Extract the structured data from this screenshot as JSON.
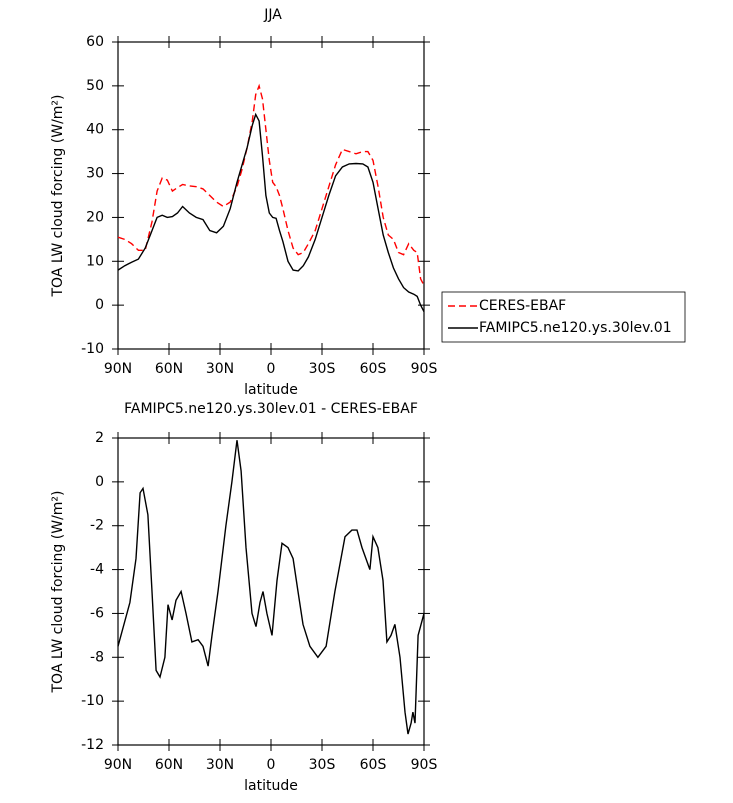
{
  "chart_data": [
    {
      "type": "line",
      "title": "JJA",
      "xlabel": "latitude",
      "ylabel": "TOA LW cloud forcing (W/m²)",
      "x": [
        90,
        86,
        82,
        78,
        74,
        70,
        67,
        64,
        61,
        58,
        55,
        52,
        48,
        44,
        40,
        36,
        32,
        28,
        24,
        20,
        17,
        14,
        11,
        9,
        7,
        5,
        3,
        1,
        -1,
        -3,
        -5,
        -7,
        -10,
        -13,
        -16,
        -19,
        -22,
        -26,
        -30,
        -34,
        -38,
        -42,
        -46,
        -50,
        -54,
        -57,
        -60,
        -63,
        -66,
        -69,
        -72,
        -75,
        -78,
        -81,
        -84,
        -86,
        -88,
        -90
      ],
      "series": [
        {
          "name": "CERES-EBAF",
          "color": "#ff0000",
          "linestyle": "dashed",
          "values": [
            15.5,
            15,
            14,
            12.5,
            12.5,
            19,
            26,
            29,
            28.5,
            26,
            26.8,
            27.5,
            27.2,
            27,
            26.5,
            25,
            23.5,
            22.5,
            23.5,
            27,
            31,
            36,
            42,
            48,
            50,
            47,
            40,
            33,
            28,
            27,
            25,
            22,
            17,
            13,
            11.5,
            12,
            14,
            17,
            22,
            27,
            32,
            35.5,
            35,
            34.5,
            35,
            35,
            33,
            27,
            20,
            16,
            15,
            12,
            11.5,
            14,
            12.5,
            12,
            6,
            4.5
          ]
        },
        {
          "name": "FAMIPC5.ne120.ys.30lev.01",
          "color": "#000000",
          "linestyle": "solid",
          "values": [
            8,
            9,
            9.8,
            10.5,
            13,
            17,
            20,
            20.5,
            20,
            20.2,
            21,
            22.5,
            21,
            20,
            19.5,
            17,
            16.5,
            18,
            22,
            28,
            32,
            36,
            41,
            43.5,
            42,
            34,
            25,
            21,
            20,
            19.8,
            17,
            14.5,
            10,
            8,
            7.8,
            9,
            11,
            15,
            20,
            25,
            29.5,
            31.5,
            32.2,
            32.3,
            32.2,
            31.5,
            28,
            22,
            16,
            12,
            8.5,
            6,
            4,
            3,
            2.5,
            2,
            0,
            -1.5
          ]
        }
      ],
      "xlim": [
        90,
        -90
      ],
      "ylim": [
        -10,
        60
      ],
      "xticks": [
        {
          "value": 90,
          "label": "90N"
        },
        {
          "value": 60,
          "label": "60N"
        },
        {
          "value": 30,
          "label": "30N"
        },
        0,
        {
          "value": -30,
          "label": "30S"
        },
        {
          "value": -60,
          "label": "60S"
        },
        {
          "value": -90,
          "label": "90S"
        }
      ],
      "yticks": [
        -10,
        0,
        10,
        20,
        30,
        40,
        50,
        60
      ],
      "legend": "right"
    },
    {
      "type": "line",
      "title": "FAMIPC5.ne120.ys.30lev.01 - CERES-EBAF",
      "xlabel": "latitude",
      "ylabel": "TOA LW cloud forcing (W/m²)",
      "x": [
        90,
        83,
        79.4,
        77,
        75.3,
        72.4,
        70,
        67.6,
        65.3,
        62.4,
        60.6,
        58.2,
        55.9,
        52.9,
        50,
        46.5,
        42.9,
        40,
        37,
        34.7,
        31.2,
        26.5,
        23,
        20,
        17.6,
        14.7,
        11.2,
        8.8,
        6.5,
        4.7,
        2.4,
        -0.6,
        -3.5,
        -6.5,
        -10,
        -13,
        -15.9,
        -18.8,
        -22.9,
        -27.6,
        -32.4,
        -37.6,
        -43.5,
        -47.6,
        -50.6,
        -53.5,
        -58.2,
        -60,
        -62.9,
        -65.9,
        -68.2,
        -70.6,
        -72.9,
        -75.9,
        -78.8,
        -80.6,
        -82.4,
        -83.5,
        -84.7,
        -86.5,
        -90
      ],
      "series": [
        {
          "color": "#000000",
          "linestyle": "solid",
          "values": [
            -7.5,
            -5.5,
            -3.5,
            -0.5,
            -0.3,
            -1.5,
            -5,
            -8.6,
            -8.9,
            -8,
            -5.6,
            -6.3,
            -5.4,
            -5,
            -6,
            -7.3,
            -7.2,
            -7.5,
            -8.4,
            -7,
            -5,
            -2,
            0,
            1.9,
            0.5,
            -3,
            -6,
            -6.6,
            -5.5,
            -5,
            -6,
            -7,
            -4.5,
            -2.8,
            -3,
            -3.5,
            -5,
            -6.5,
            -7.5,
            -8,
            -7.5,
            -5,
            -2.5,
            -2.2,
            -2.2,
            -3,
            -4,
            -2.5,
            -3,
            -4.5,
            -7.3,
            -7,
            -6.5,
            -8,
            -10.5,
            -11.5,
            -11,
            -10.5,
            -11,
            -7,
            -6
          ]
        }
      ],
      "xlim": [
        90,
        -90
      ],
      "ylim": [
        -12,
        2
      ],
      "xticks": [
        {
          "value": 90,
          "label": "90N"
        },
        {
          "value": 60,
          "label": "60N"
        },
        {
          "value": 30,
          "label": "30N"
        },
        0,
        {
          "value": -30,
          "label": "30S"
        },
        {
          "value": -60,
          "label": "60S"
        },
        {
          "value": -90,
          "label": "90S"
        }
      ],
      "yticks": [
        -12,
        -10,
        -8,
        -6,
        -4,
        -2,
        0,
        2
      ]
    }
  ]
}
